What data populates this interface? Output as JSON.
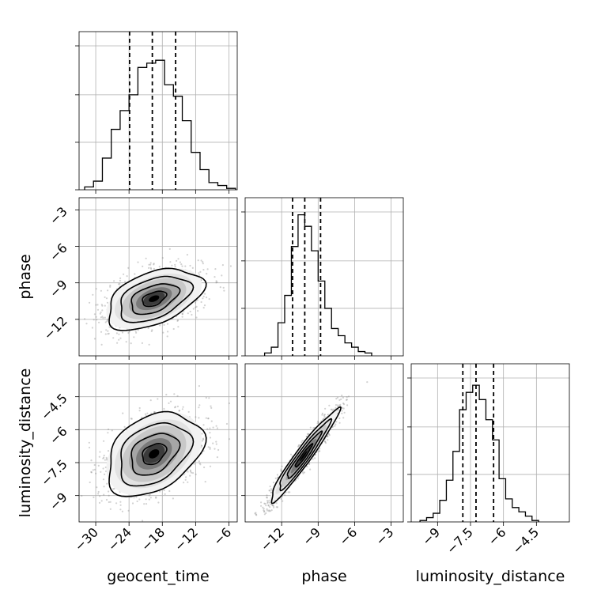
{
  "chart_data": {
    "type": "corner",
    "parameters": [
      {
        "name": "geocent_time",
        "ticks": [
          -30,
          -24,
          -18,
          -12,
          -6
        ],
        "range": [
          -33,
          -4.5
        ],
        "quantiles": [
          -23.9,
          -19.8,
          -15.6
        ],
        "hist_edges": [
          -32,
          -30.4,
          -28.8,
          -27.2,
          -25.6,
          -24.0,
          -22.4,
          -20.8,
          -19.2,
          -17.6,
          -16.0,
          -14.4,
          -12.8,
          -11.2,
          -9.6,
          -8.0,
          -6.4,
          -4.8
        ],
        "hist_counts": [
          0.02,
          0.06,
          0.22,
          0.42,
          0.55,
          0.66,
          0.85,
          0.88,
          0.9,
          0.73,
          0.65,
          0.48,
          0.26,
          0.14,
          0.05,
          0.03,
          0.01
        ]
      },
      {
        "name": "phase",
        "ticks": [
          -12,
          -9,
          -6,
          -3
        ],
        "range": [
          -15,
          -2
        ],
        "quantiles": [
          -11.1,
          -10.1,
          -8.8
        ],
        "hist_edges": [
          -13.4,
          -12.85,
          -12.3,
          -11.75,
          -11.2,
          -10.65,
          -10.1,
          -9.55,
          -9.0,
          -8.45,
          -7.9,
          -7.35,
          -6.8,
          -6.25,
          -5.7,
          -5.15,
          -4.6
        ],
        "hist_counts": [
          0.02,
          0.06,
          0.23,
          0.42,
          0.76,
          0.98,
          0.9,
          0.73,
          0.52,
          0.33,
          0.19,
          0.14,
          0.09,
          0.06,
          0.03,
          0.02
        ]
      },
      {
        "name": "luminosity_distance",
        "ticks": [
          -9.0,
          -7.5,
          -6.0,
          -4.5
        ],
        "range": [
          -10.2,
          -3.0
        ],
        "quantiles": [
          -7.85,
          -7.25,
          -6.45
        ],
        "hist_edges": [
          -9.8,
          -9.5,
          -9.2,
          -8.9,
          -8.6,
          -8.3,
          -8.0,
          -7.7,
          -7.4,
          -7.1,
          -6.8,
          -6.5,
          -6.2,
          -5.9,
          -5.6,
          -5.3,
          -5.0,
          -4.7,
          -4.4
        ],
        "hist_counts": [
          0.01,
          0.03,
          0.06,
          0.15,
          0.29,
          0.49,
          0.78,
          0.9,
          0.95,
          0.85,
          0.71,
          0.57,
          0.3,
          0.16,
          0.1,
          0.07,
          0.04,
          0.01
        ]
      }
    ],
    "pairs": [
      {
        "x": "geocent_time",
        "y": "phase",
        "center": [
          -19.5,
          -10.3
        ],
        "sigma": [
          4.3,
          1.25
        ],
        "corr": 0.45
      },
      {
        "x": "geocent_time",
        "y": "luminosity_distance",
        "center": [
          -19.5,
          -7.1
        ],
        "sigma": [
          4.3,
          0.95
        ],
        "corr": 0.35
      },
      {
        "x": "phase",
        "y": "luminosity_distance",
        "center": [
          -10.2,
          -7.2
        ],
        "sigma": [
          1.4,
          1.05
        ],
        "corr": 0.96
      }
    ],
    "grid": true,
    "colors": {
      "points": "#7f7f7f",
      "lines": "#000000"
    }
  }
}
